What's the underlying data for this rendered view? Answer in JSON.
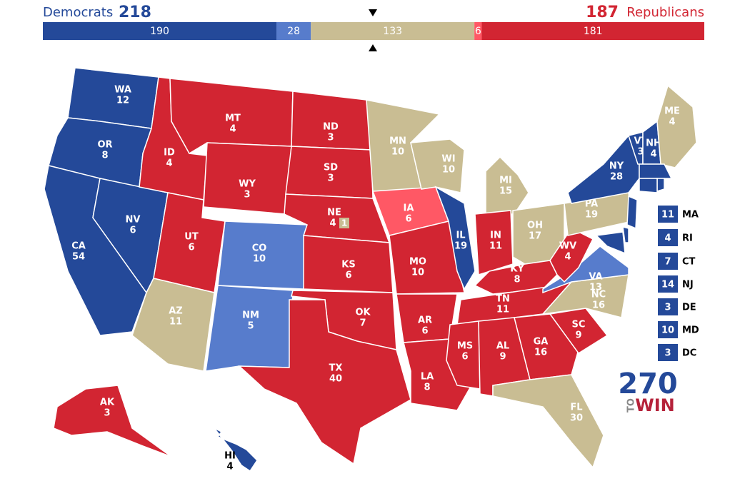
{
  "header": {
    "dem_label": "Democrats",
    "dem_total": "218",
    "rep_total": "187",
    "rep_label": "Republicans"
  },
  "bar": {
    "segments": [
      {
        "value": 190,
        "color": "#244999"
      },
      {
        "value": 28,
        "color": "#577ccc"
      },
      {
        "value": 133,
        "color": "#c9bd93"
      },
      {
        "value": 6,
        "color": "#ff5865"
      },
      {
        "value": 181,
        "color": "#d22532"
      }
    ]
  },
  "states": [
    {
      "abbr": "WA",
      "votes": 12,
      "color": "#244999"
    },
    {
      "abbr": "OR",
      "votes": 8,
      "color": "#244999"
    },
    {
      "abbr": "CA",
      "votes": 54,
      "color": "#244999"
    },
    {
      "abbr": "NV",
      "votes": 6,
      "color": "#244999"
    },
    {
      "abbr": "ID",
      "votes": 4,
      "color": "#d22532"
    },
    {
      "abbr": "MT",
      "votes": 4,
      "color": "#d22532"
    },
    {
      "abbr": "WY",
      "votes": 3,
      "color": "#d22532"
    },
    {
      "abbr": "UT",
      "votes": 6,
      "color": "#d22532"
    },
    {
      "abbr": "AZ",
      "votes": 11,
      "color": "#c9bd93"
    },
    {
      "abbr": "CO",
      "votes": 10,
      "color": "#577ccc"
    },
    {
      "abbr": "NM",
      "votes": 5,
      "color": "#577ccc"
    },
    {
      "abbr": "ND",
      "votes": 3,
      "color": "#d22532"
    },
    {
      "abbr": "SD",
      "votes": 3,
      "color": "#d22532"
    },
    {
      "abbr": "NE",
      "votes": 4,
      "color": "#d22532",
      "district": {
        "votes": 1,
        "color": "#c9bd93"
      }
    },
    {
      "abbr": "KS",
      "votes": 6,
      "color": "#d22532"
    },
    {
      "abbr": "OK",
      "votes": 7,
      "color": "#d22532"
    },
    {
      "abbr": "TX",
      "votes": 40,
      "color": "#d22532"
    },
    {
      "abbr": "MN",
      "votes": 10,
      "color": "#c9bd93"
    },
    {
      "abbr": "IA",
      "votes": 6,
      "color": "#ff5865"
    },
    {
      "abbr": "MO",
      "votes": 10,
      "color": "#d22532"
    },
    {
      "abbr": "AR",
      "votes": 6,
      "color": "#d22532"
    },
    {
      "abbr": "LA",
      "votes": 8,
      "color": "#d22532"
    },
    {
      "abbr": "WI",
      "votes": 10,
      "color": "#c9bd93"
    },
    {
      "abbr": "IL",
      "votes": 19,
      "color": "#244999"
    },
    {
      "abbr": "MI",
      "votes": 15,
      "color": "#c9bd93"
    },
    {
      "abbr": "IN",
      "votes": 11,
      "color": "#d22532"
    },
    {
      "abbr": "OH",
      "votes": 17,
      "color": "#c9bd93"
    },
    {
      "abbr": "KY",
      "votes": 8,
      "color": "#d22532"
    },
    {
      "abbr": "TN",
      "votes": 11,
      "color": "#d22532"
    },
    {
      "abbr": "MS",
      "votes": 6,
      "color": "#d22532"
    },
    {
      "abbr": "AL",
      "votes": 9,
      "color": "#d22532"
    },
    {
      "abbr": "GA",
      "votes": 16,
      "color": "#d22532"
    },
    {
      "abbr": "FL",
      "votes": 30,
      "color": "#c9bd93"
    },
    {
      "abbr": "SC",
      "votes": 9,
      "color": "#d22532"
    },
    {
      "abbr": "NC",
      "votes": 16,
      "color": "#c9bd93"
    },
    {
      "abbr": "VA",
      "votes": 13,
      "color": "#577ccc"
    },
    {
      "abbr": "WV",
      "votes": 4,
      "color": "#d22532"
    },
    {
      "abbr": "PA",
      "votes": 19,
      "color": "#c9bd93"
    },
    {
      "abbr": "NY",
      "votes": 28,
      "color": "#244999"
    },
    {
      "abbr": "VT",
      "votes": 3,
      "color": "#244999"
    },
    {
      "abbr": "NH",
      "votes": 4,
      "color": "#244999"
    },
    {
      "abbr": "ME",
      "votes": 4,
      "color": "#c9bd93"
    },
    {
      "abbr": "MA",
      "votes": 11,
      "color": "#244999"
    },
    {
      "abbr": "RI",
      "votes": 4,
      "color": "#244999"
    },
    {
      "abbr": "CT",
      "votes": 7,
      "color": "#244999"
    },
    {
      "abbr": "NJ",
      "votes": 14,
      "color": "#244999"
    },
    {
      "abbr": "DE",
      "votes": 3,
      "color": "#244999"
    },
    {
      "abbr": "MD",
      "votes": 10,
      "color": "#244999"
    },
    {
      "abbr": "DC",
      "votes": 3,
      "color": "#244999"
    },
    {
      "abbr": "AK",
      "votes": 3,
      "color": "#d22532"
    },
    {
      "abbr": "HI",
      "votes": 4,
      "color": "#244999"
    }
  ],
  "logo": {
    "number": "270",
    "to": "TO",
    "win": "WIN"
  }
}
